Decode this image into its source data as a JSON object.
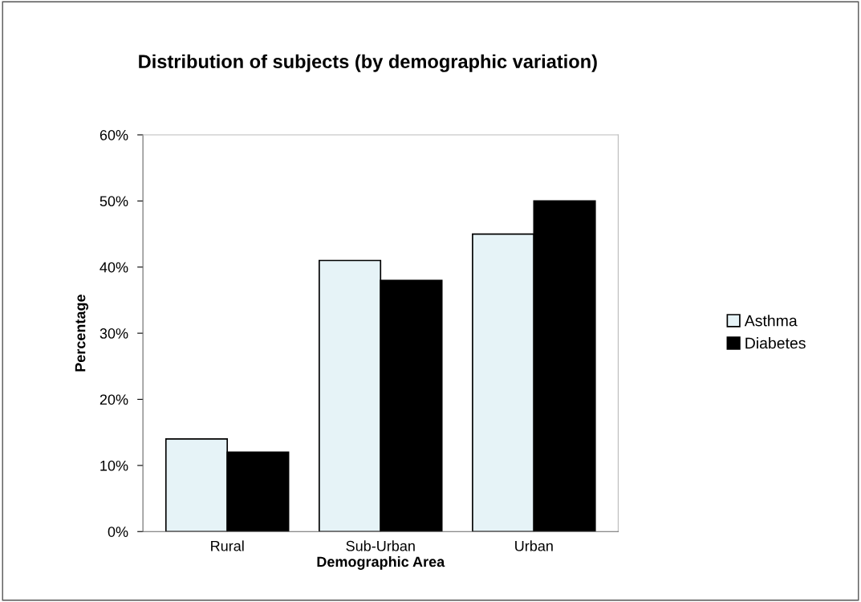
{
  "chart_data": {
    "type": "bar",
    "title": "Distribution of subjects (by demographic variation)",
    "xlabel": "Demographic Area",
    "ylabel": "Percentage",
    "categories": [
      "Rural",
      "Sub-Urban",
      "Urban"
    ],
    "series": [
      {
        "name": "Asthma",
        "color": "#e6f3f7",
        "values": [
          14,
          41,
          45
        ]
      },
      {
        "name": "Diabetes",
        "color": "#000000",
        "values": [
          12,
          38,
          50
        ]
      }
    ],
    "ylim": [
      0,
      60
    ],
    "yticks": [
      {
        "value": 0,
        "label": "0%"
      },
      {
        "value": 10,
        "label": "10%"
      },
      {
        "value": 20,
        "label": "20%"
      },
      {
        "value": 30,
        "label": "30%"
      },
      {
        "value": 40,
        "label": "40%"
      },
      {
        "value": 50,
        "label": "50%"
      },
      {
        "value": 60,
        "label": "60%"
      }
    ],
    "grid": false,
    "legend": "right"
  }
}
